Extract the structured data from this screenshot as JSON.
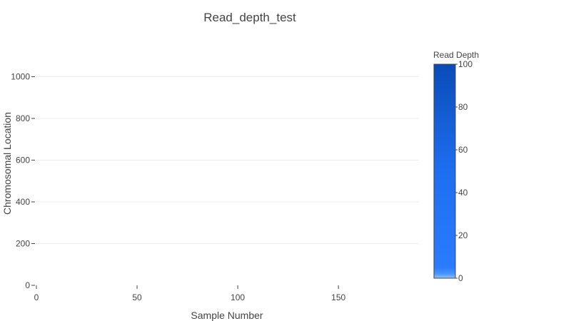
{
  "chart_data": {
    "type": "heatmap",
    "title": "Read_depth_test",
    "xlabel": "Sample Number",
    "ylabel": "Chromosomal Location",
    "xlim": [
      0,
      190
    ],
    "ylim": [
      0,
      1060
    ],
    "x_ticks": [
      0,
      50,
      100,
      150
    ],
    "y_ticks": [
      0,
      200,
      400,
      600,
      800,
      1000
    ],
    "grid": "horizontal",
    "values": [],
    "colorbar": {
      "title": "Read Depth",
      "range": [
        0,
        100
      ],
      "ticks": [
        0,
        20,
        40,
        60,
        80,
        100
      ],
      "colors": {
        "low": "#8ec3f5",
        "low_mid": "#2b7bff",
        "mid": "#1e6ef0",
        "high": "#0a4cb8"
      },
      "placement": "right"
    },
    "colors": {
      "text": "#444444",
      "grid": "#eeeeee",
      "axis": "#444444"
    }
  }
}
